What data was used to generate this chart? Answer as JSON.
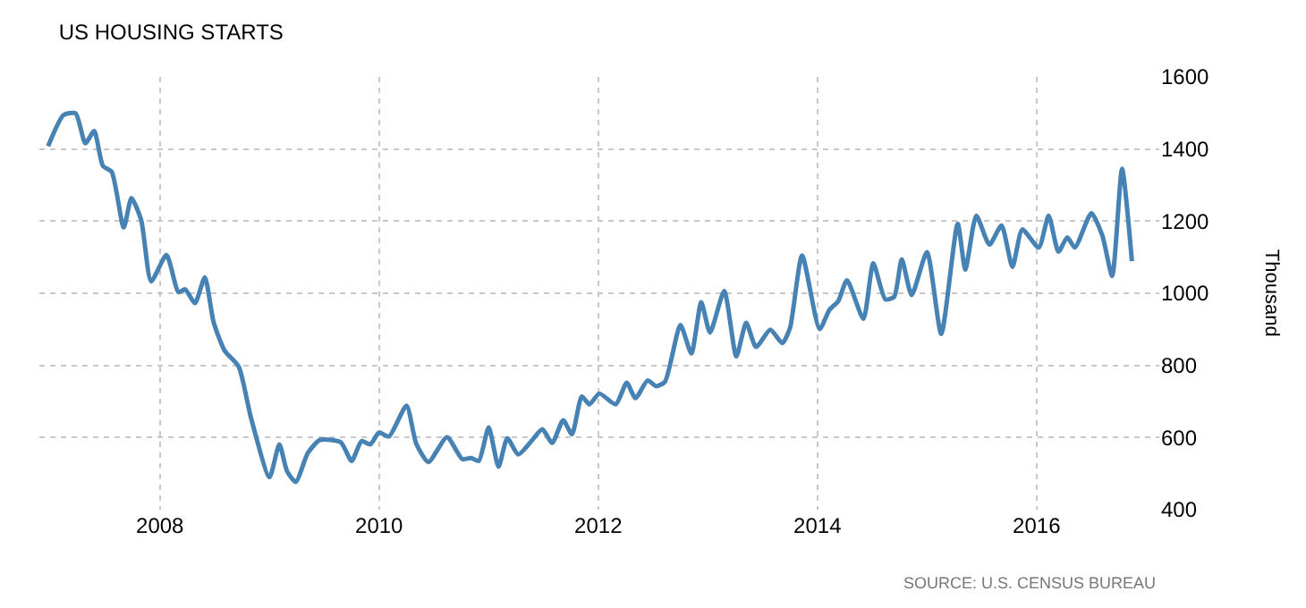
{
  "chart_data": {
    "type": "line",
    "title": "US HOUSING STARTS",
    "ylabel": "Thousand",
    "annotations": [
      "SOURCE: U.S. CENSUS BUREAU"
    ],
    "series": [
      {
        "color": "#4682b4",
        "x": [
          2006.98,
          2007.12,
          2007.23,
          2007.32,
          2007.4,
          2007.48,
          2007.56,
          2007.67,
          2007.74,
          2007.83,
          2007.92,
          2008.06,
          2008.17,
          2008.23,
          2008.32,
          2008.41,
          2008.49,
          2008.59,
          2008.72,
          2008.83,
          2009.0,
          2009.09,
          2009.16,
          2009.24,
          2009.35,
          2009.46,
          2009.65,
          2009.75,
          2009.84,
          2009.92,
          2010.0,
          2010.09,
          2010.25,
          2010.34,
          2010.45,
          2010.62,
          2010.76,
          2010.84,
          2010.91,
          2011.0,
          2011.09,
          2011.17,
          2011.27,
          2011.39,
          2011.49,
          2011.58,
          2011.68,
          2011.76,
          2011.85,
          2011.92,
          2012.01,
          2012.16,
          2012.26,
          2012.34,
          2012.45,
          2012.53,
          2012.61,
          2012.75,
          2012.85,
          2012.94,
          2013.02,
          2013.15,
          2013.26,
          2013.35,
          2013.44,
          2013.57,
          2013.68,
          2013.75,
          2013.86,
          2014.02,
          2014.11,
          2014.19,
          2014.27,
          2014.42,
          2014.51,
          2014.62,
          2014.7,
          2014.77,
          2014.86,
          2015.0,
          2015.13,
          2015.28,
          2015.35,
          2015.45,
          2015.57,
          2015.68,
          2015.78,
          2015.87,
          2016.02,
          2016.11,
          2016.2,
          2016.28,
          2016.35,
          2016.5,
          2016.6,
          2016.69,
          2016.78,
          2016.87
        ],
        "values": [
          1408,
          1494,
          1499,
          1416,
          1450,
          1353,
          1337,
          1182,
          1264,
          1202,
          1033,
          1106,
          1003,
          1011,
          973,
          1044,
          920,
          841,
          796,
          656,
          490,
          581,
          507,
          477,
          557,
          593,
          587,
          535,
          590,
          581,
          614,
          603,
          688,
          582,
          532,
          601,
          540,
          543,
          535,
          628,
          519,
          598,
          553,
          590,
          623,
          585,
          648,
          609,
          714,
          692,
          722,
          692,
          752,
          709,
          758,
          742,
          755,
          912,
          833,
          975,
          891,
          1006,
          825,
          918,
          851,
          899,
          862,
          904,
          1105,
          901,
          954,
          978,
          1036,
          929,
          1083,
          983,
          990,
          1094,
          995,
          1114,
          887,
          1193,
          1066,
          1215,
          1135,
          1188,
          1073,
          1177,
          1127,
          1215,
          1115,
          1155,
          1127,
          1222,
          1160,
          1048,
          1345,
          1089
        ]
      }
    ],
    "xlim": [
      2006.9,
      2017.12
    ],
    "xticks": [
      2008,
      2010,
      2012,
      2014,
      2016
    ],
    "ylim": [
      400,
      1600
    ],
    "yticks": [
      400,
      600,
      800,
      1000,
      1200,
      1400,
      1600
    ],
    "grid": true,
    "marker": "none",
    "line_style": "solid"
  }
}
